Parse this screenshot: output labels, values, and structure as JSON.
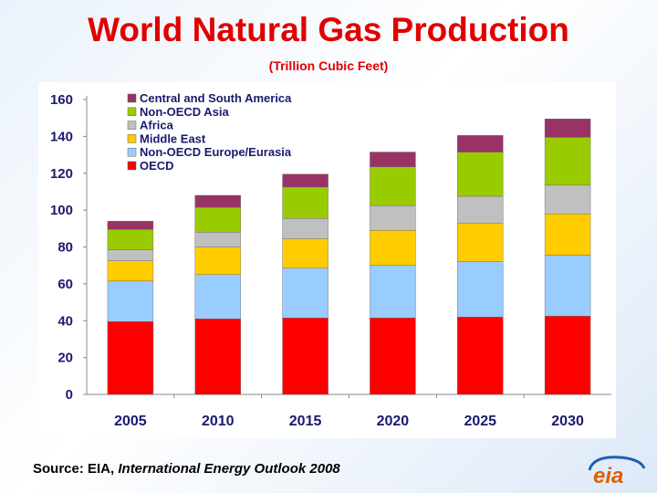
{
  "title": "World Natural Gas Production",
  "subtitle": "(Trillion Cubic Feet)",
  "source": {
    "prefix": "Source:  EIA, ",
    "publication": "International Energy Outlook 2008"
  },
  "logo_text": "eia",
  "chart_data": {
    "type": "bar",
    "stacked": true,
    "title": "World Natural Gas Production",
    "subtitle": "(Trillion Cubic Feet)",
    "xlabel": "",
    "ylabel": "",
    "ylim": [
      0,
      160
    ],
    "yticks": [
      0,
      20,
      40,
      60,
      80,
      100,
      120,
      140,
      160
    ],
    "categories": [
      "2005",
      "2010",
      "2015",
      "2020",
      "2025",
      "2030"
    ],
    "series": [
      {
        "name": "OECD",
        "color": "#ff0000",
        "values": [
          39.5,
          41,
          41.5,
          41.5,
          42,
          42.5
        ]
      },
      {
        "name": "Non-OECD Europe/Eurasia",
        "color": "#99ccff",
        "values": [
          22,
          24,
          27,
          28.5,
          30,
          33
        ]
      },
      {
        "name": "Middle East",
        "color": "#ffcc00",
        "values": [
          11,
          15,
          16,
          19,
          21,
          22.5
        ]
      },
      {
        "name": "Africa",
        "color": "#c0c0c0",
        "values": [
          6,
          8,
          11,
          13.5,
          14.5,
          15.5
        ]
      },
      {
        "name": "Non-OECD Asia",
        "color": "#99cc00",
        "values": [
          11,
          13.5,
          17,
          21,
          24,
          26
        ]
      },
      {
        "name": "Central and South America",
        "color": "#993366",
        "values": [
          4.5,
          6.5,
          7,
          8,
          9,
          10
        ]
      }
    ],
    "legend_order": [
      "Central and South America",
      "Non-OECD Asia",
      "Africa",
      "Middle East",
      "Non-OECD Europe/Eurasia",
      "OECD"
    ],
    "legend_position": "top-left",
    "grid": false
  }
}
